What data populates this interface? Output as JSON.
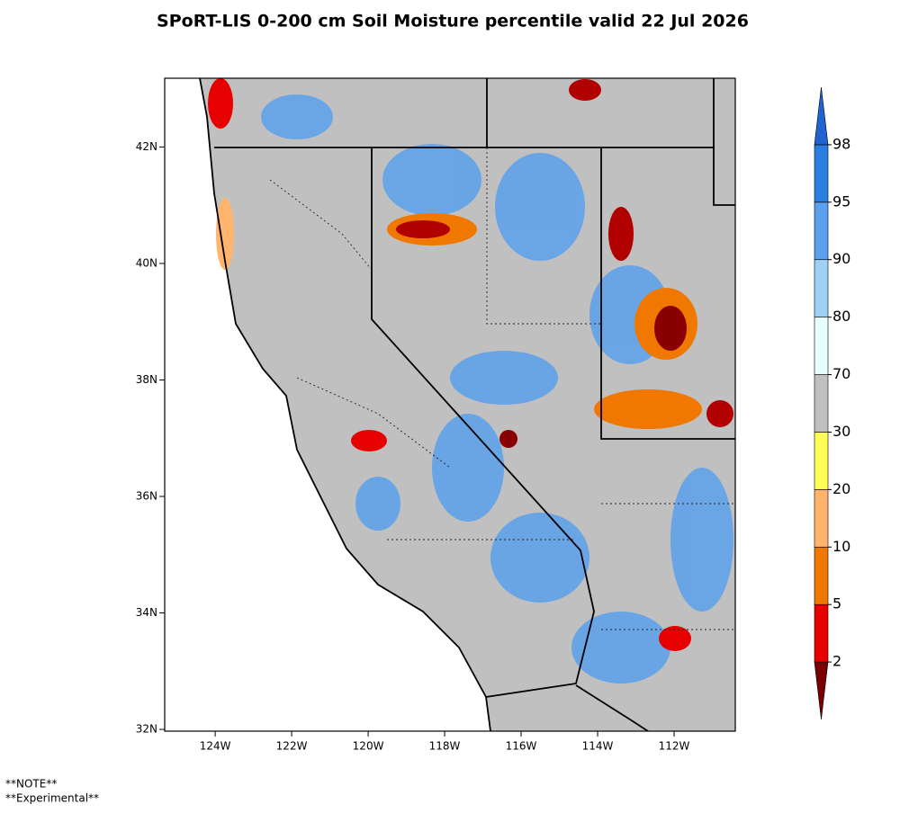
{
  "title": "SPoRT-LIS 0-200 cm Soil Moisture percentile valid 22 Jul 2026",
  "map": {
    "latlim": [
      31.97,
      43.18
    ],
    "lonlim": [
      -125.32,
      -110.4
    ],
    "lat_ticks": [
      {
        "value": 42,
        "label": "42N"
      },
      {
        "value": 40,
        "label": "40N"
      },
      {
        "value": 38,
        "label": "38N"
      },
      {
        "value": 36,
        "label": "36N"
      },
      {
        "value": 34,
        "label": "34N"
      },
      {
        "value": 32,
        "label": "32N"
      }
    ],
    "lon_ticks": [
      {
        "value": -124,
        "label": "124W"
      },
      {
        "value": -122,
        "label": "122W"
      },
      {
        "value": -120,
        "label": "120W"
      },
      {
        "value": -118,
        "label": "118W"
      },
      {
        "value": -116,
        "label": "116W"
      },
      {
        "value": -114,
        "label": "114W"
      },
      {
        "value": -112,
        "label": "112W"
      }
    ]
  },
  "colorbar": {
    "levels": [
      2,
      5,
      10,
      20,
      30,
      70,
      80,
      90,
      95,
      98
    ],
    "colors": [
      "#780000",
      "#e60000",
      "#f07800",
      "#ffb46e",
      "#ffff55",
      "#c0c0c0",
      "#e6ffff",
      "#9fd0f5",
      "#5aa0ec",
      "#2b7de0",
      "#1f64d0"
    ]
  },
  "notes": [
    "**NOTE**",
    "**Experimental**"
  ]
}
